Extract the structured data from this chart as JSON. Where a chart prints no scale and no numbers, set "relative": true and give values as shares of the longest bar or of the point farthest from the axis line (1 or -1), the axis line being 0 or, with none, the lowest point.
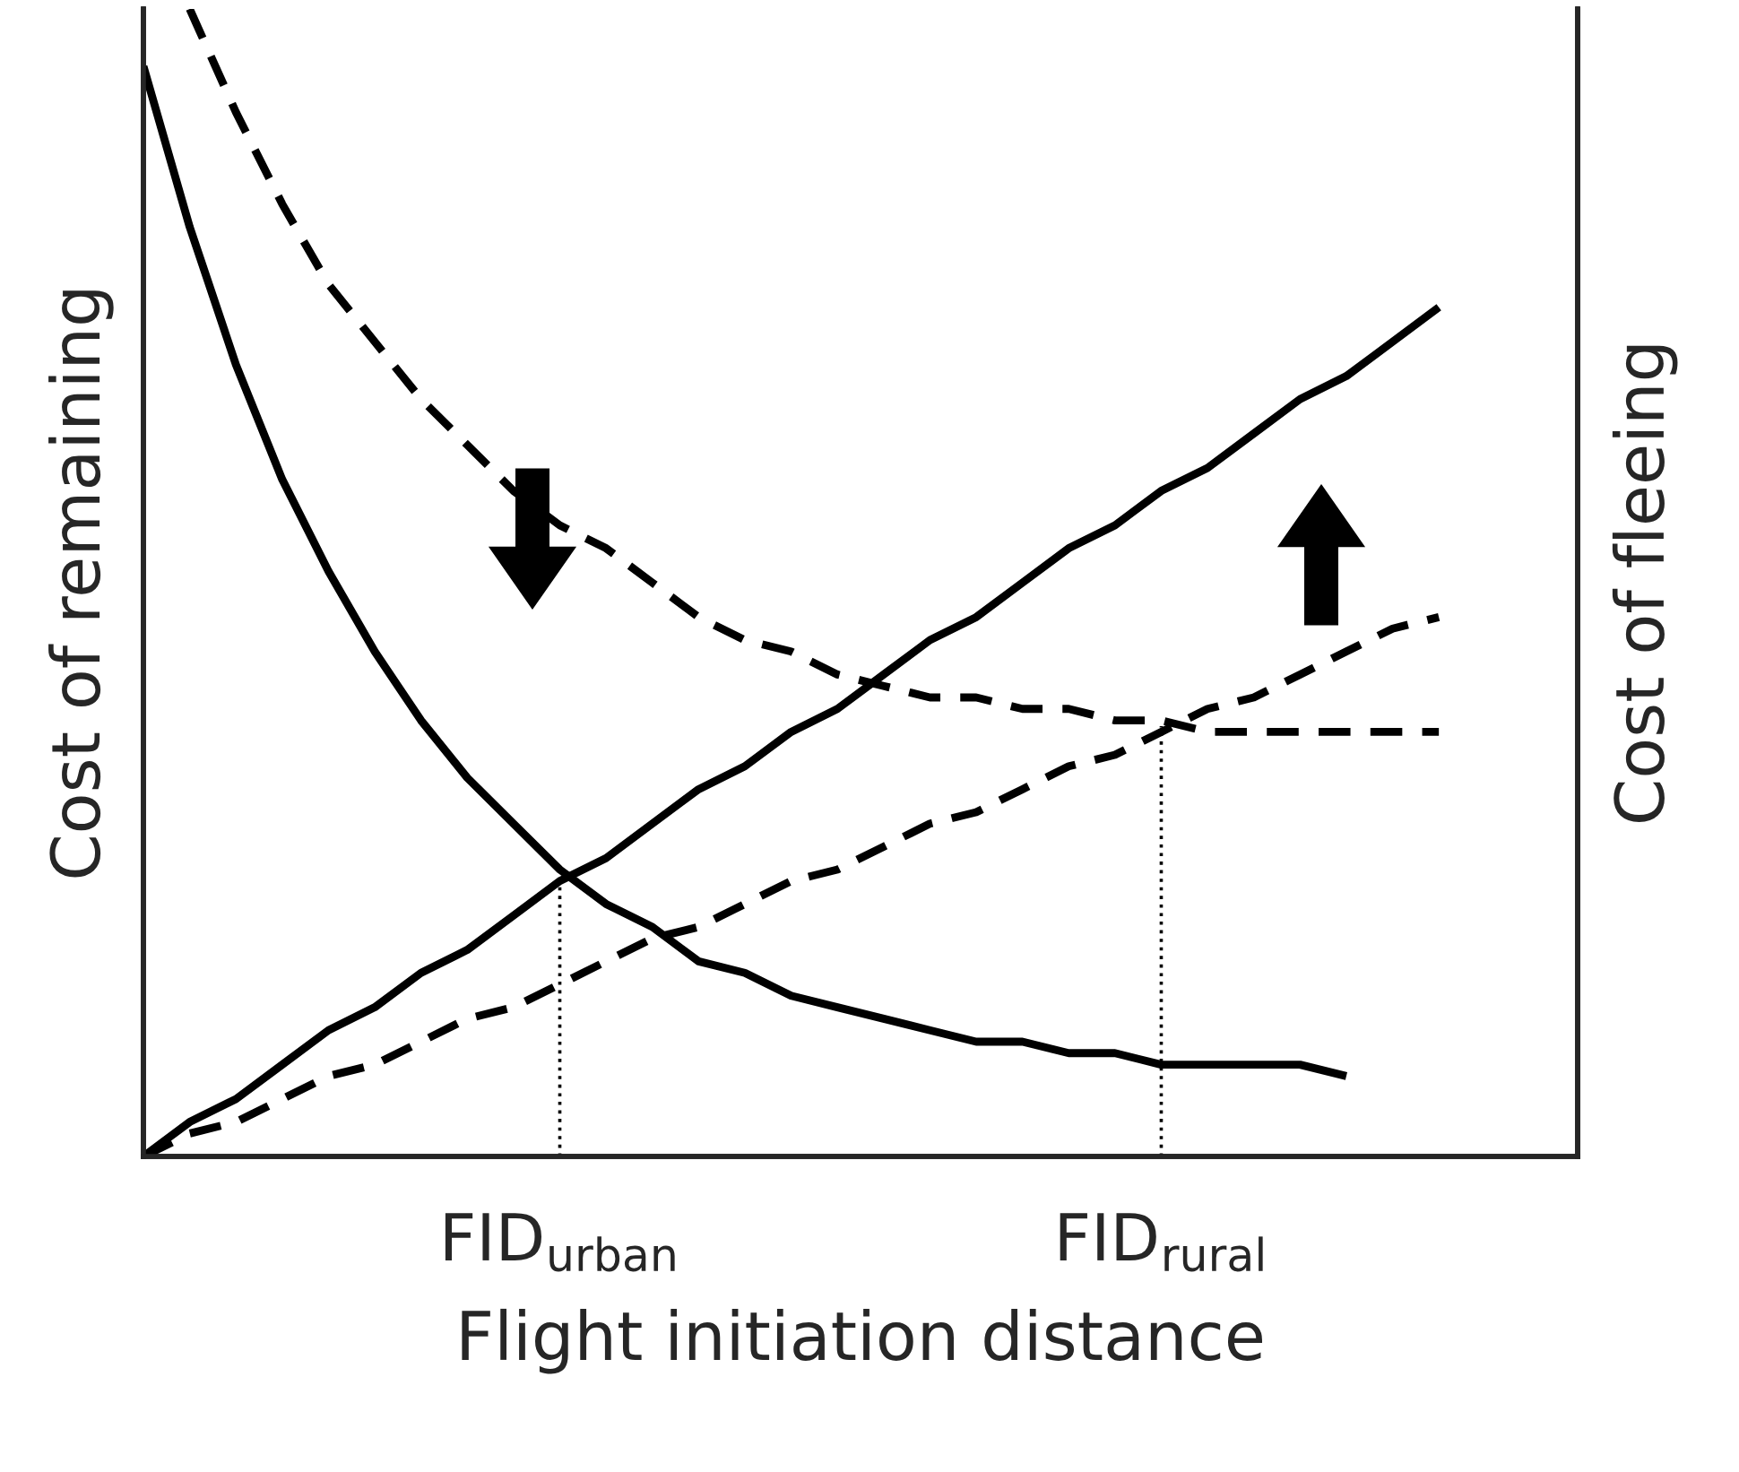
{
  "chart_data": {
    "type": "line",
    "relative": true,
    "xlabel": "Flight initiation distance",
    "ylabel": "Cost of remaining",
    "y2label": "Cost of fleeing",
    "categories": [
      null,
      null,
      null,
      null,
      null,
      null,
      null,
      null,
      null,
      "FID$_{urban}$",
      null,
      null,
      null,
      null,
      null,
      null,
      null,
      null,
      null,
      null,
      null,
      null,
      "FID$_{rural}$",
      null,
      null,
      null,
      null,
      null,
      null,
      null,
      null,
      null
    ],
    "series": [
      {
        "color": "#000000",
        "line_style": "solid",
        "values": [
          0.95,
          0.81,
          0.69,
          0.59,
          0.51,
          0.44,
          0.38,
          0.33,
          0.29,
          0.25,
          0.22,
          0.2,
          0.17,
          0.16,
          0.14,
          0.13,
          0.12,
          0.11,
          0.1,
          0.1,
          0.09,
          0.09,
          0.08,
          0.08,
          0.08,
          0.08,
          0.07,
          null,
          null,
          null,
          null,
          null
        ]
      },
      {
        "color": "#000000",
        "line_style": "dashed",
        "values": [
          null,
          1,
          0.91,
          0.83,
          0.76,
          0.71,
          0.66,
          0.62,
          0.58,
          0.55,
          0.53,
          0.5,
          0.47,
          0.45,
          0.44,
          0.42,
          0.41,
          0.4,
          0.4,
          0.39,
          0.39,
          0.38,
          0.38,
          0.37,
          0.37,
          0.37,
          0.37,
          0.37,
          0.37,
          null,
          null,
          null
        ]
      },
      {
        "color": "#000000",
        "line_style": "solid",
        "values": [
          0,
          0.03,
          0.05,
          0.08,
          0.11,
          0.13,
          0.16,
          0.18,
          0.21,
          0.24,
          0.26,
          0.29,
          0.32,
          0.34,
          0.37,
          0.39,
          0.42,
          0.45,
          0.47,
          0.5,
          0.53,
          0.55,
          0.58,
          0.6,
          0.63,
          0.66,
          0.68,
          0.71,
          0.74,
          null,
          null,
          null
        ]
      },
      {
        "color": "#000000",
        "line_style": "dashed",
        "values": [
          0,
          0.02,
          0.03,
          0.05,
          0.07,
          0.08,
          0.1,
          0.12,
          0.13,
          0.15,
          0.17,
          0.19,
          0.2,
          0.22,
          0.24,
          0.25,
          0.27,
          0.29,
          0.3,
          0.32,
          0.34,
          0.35,
          0.37,
          0.39,
          0.4,
          0.42,
          0.44,
          0.46,
          0.47,
          null,
          null,
          null
        ]
      }
    ],
    "ref_lines": [
      {
        "axis": "x",
        "value": "FID$_{urban}$",
        "color": "#000000",
        "line_style": "dotted"
      },
      {
        "axis": "x",
        "value": "FID$_{rural}$",
        "color": "#000000",
        "line_style": "dotted"
      }
    ]
  }
}
